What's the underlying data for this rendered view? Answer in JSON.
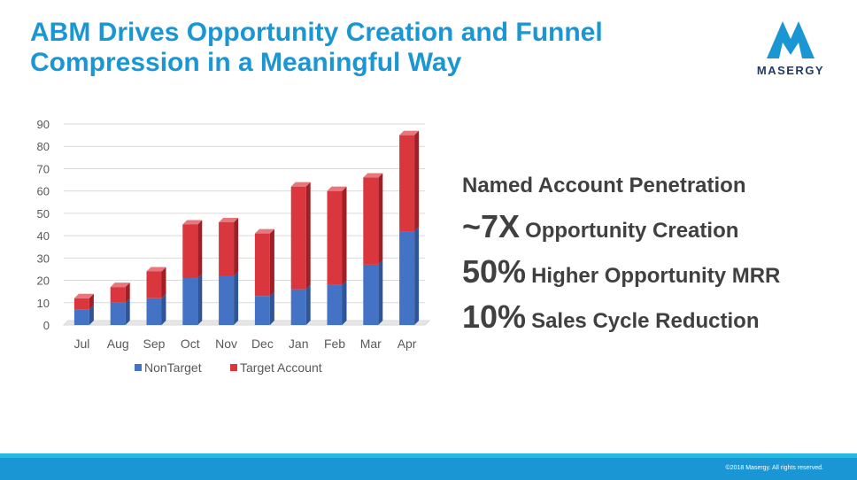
{
  "slide": {
    "title_line1": "ABM Drives Opportunity Creation and Funnel",
    "title_line2": "Compression in a Meaningful Way",
    "logo_text": "MASERGY",
    "copyright": "©2018 Masergy. All rights reserved."
  },
  "stats": {
    "heading": "Named Account Penetration",
    "rows": [
      {
        "big": "~7X",
        "small": "Opportunity Creation"
      },
      {
        "big": "50%",
        "small": "Higher Opportunity MRR"
      },
      {
        "big": "10%",
        "small": "Sales Cycle Reduction"
      }
    ]
  },
  "colors": {
    "brand_blue": "#1b96d4",
    "nontarget": "#4472c4",
    "target": "#d9363e"
  },
  "chart_data": {
    "type": "bar",
    "stacked": true,
    "categories": [
      "Jul",
      "Aug",
      "Sep",
      "Oct",
      "Nov",
      "Dec",
      "Jan",
      "Feb",
      "Mar",
      "Apr"
    ],
    "series": [
      {
        "name": "NonTarget",
        "values": [
          7,
          10,
          12,
          21,
          22,
          13,
          16,
          18,
          27,
          42
        ]
      },
      {
        "name": "Target Account",
        "values": [
          5,
          7,
          12,
          24,
          24,
          28,
          46,
          42,
          39,
          43
        ]
      }
    ],
    "ylim": [
      0,
      90
    ],
    "yticks": [
      0,
      10,
      20,
      30,
      40,
      50,
      60,
      70,
      80,
      90
    ],
    "grid": true,
    "legend": "bottom"
  }
}
